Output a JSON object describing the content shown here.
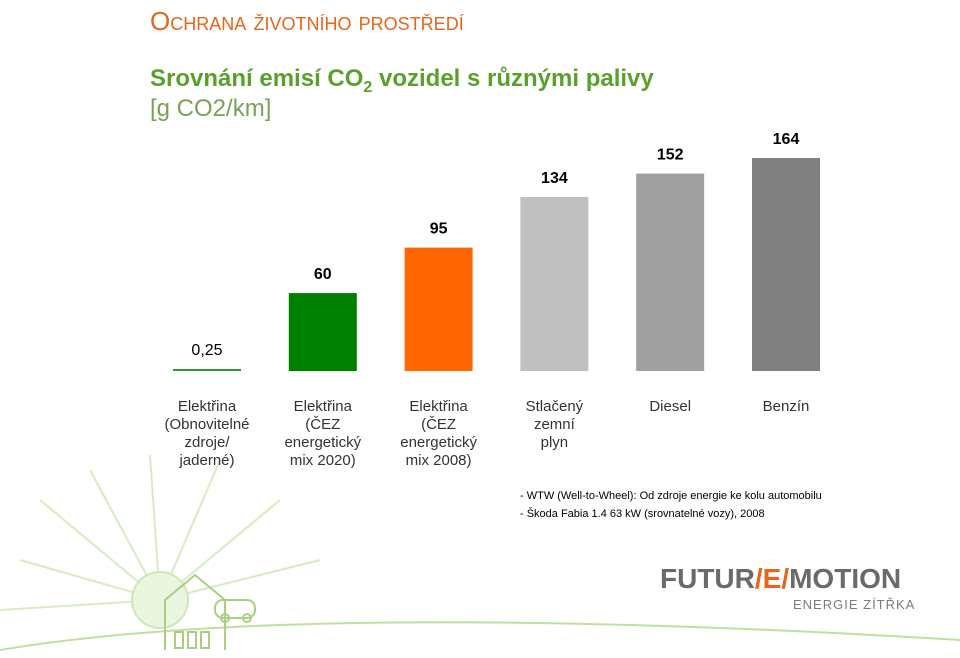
{
  "header": {
    "title": "Ochrana životního prostředí"
  },
  "chart_data": {
    "type": "bar",
    "title_parts": [
      "Srovnání emisí CO",
      "2",
      " vozidel s různými palivy"
    ],
    "unit": "[g CO2/km]",
    "categories": [
      [
        "Elektřina",
        "(Obnovitelné",
        "zdroje/",
        "jaderné)"
      ],
      [
        "Elektřina",
        "(ČEZ",
        "energetický",
        "mix 2020)"
      ],
      [
        "Elektřina",
        "(ČEZ",
        "energetický",
        "mix 2008)"
      ],
      [
        "Stlačený",
        "zemní",
        "plyn"
      ],
      [
        "Diesel"
      ],
      [
        "Benzín"
      ]
    ],
    "values": [
      0.25,
      60,
      95,
      134,
      152,
      164
    ],
    "value_labels": [
      "0,25",
      "60",
      "95",
      "134",
      "152",
      "164"
    ],
    "colors": [
      "#2f9a2f",
      "#008000",
      "#ff6600",
      "#c0c0c0",
      "#a0a0a0",
      "#808080"
    ]
  },
  "notes": [
    "- WTW (Well-to-Wheel): Od zdroje energie ke kolu automobilu",
    "- Škoda Fabia 1.4 63 kW (srovnatelné vozy), 2008"
  ],
  "logo": {
    "parts": [
      "FUTUR",
      "/E/",
      "MOTION"
    ],
    "tagline": "ENERGIE ZÍTŘKA"
  }
}
